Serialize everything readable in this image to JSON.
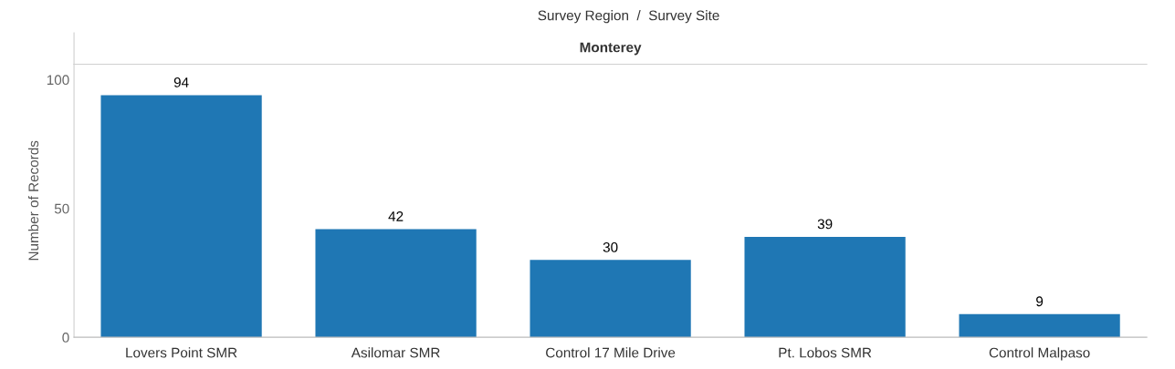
{
  "chart_data": {
    "type": "bar",
    "title": "Survey Region  /  Survey Site",
    "subtitle": "Monterey",
    "ylabel": "Number of Records",
    "categories": [
      "Lovers Point SMR",
      "Asilomar SMR",
      "Control 17 Mile Drive",
      "Pt. Lobos SMR",
      "Control Malpaso"
    ],
    "values": [
      94,
      42,
      30,
      39,
      9
    ],
    "color": "#1f77b4",
    "data_labels": true,
    "ylim": [
      0,
      106
    ],
    "yticks": [
      0,
      50,
      100
    ],
    "grid": false
  }
}
